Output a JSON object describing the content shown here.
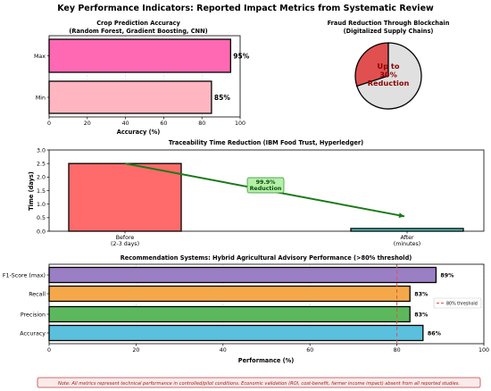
{
  "page_title": "Key Performance Indicators: Reported Impact Metrics from Systematic Review",
  "note": "Note: All metrics represent technical performance in controlled/pilot conditions. Economic validation (ROI, cost-benefit, farmer income impact) absent from all reported studies.",
  "colors": {
    "pink_max": "#ff69b4",
    "pink_min": "#ffb6c1",
    "pie_red": "#e05050",
    "pie_grey": "#e0e0e0",
    "before_red": "#ff6b6b",
    "after_teal": "#4ecdc4",
    "arrow_green": "#1a7a1a",
    "purple": "#9b7fc4",
    "orange": "#f4a84a",
    "green": "#5cb85c",
    "blue": "#5bc0de",
    "threshold_red": "#d9534f"
  },
  "chart_data": [
    {
      "type": "bar",
      "orientation": "horizontal",
      "title": "Crop Prediction Accuracy",
      "subtitle": "(Random Forest, Gradient Boosting, CNN)",
      "categories": [
        "Max",
        "Min"
      ],
      "values": [
        95,
        85
      ],
      "value_labels": [
        "95%",
        "85%"
      ],
      "xlabel": "Accuracy (%)",
      "xlim": [
        0,
        100
      ],
      "xticks": [
        "0",
        "20",
        "40",
        "60",
        "80",
        "100"
      ],
      "grid": true
    },
    {
      "type": "pie",
      "title": "Fraud Reduction Through Blockchain",
      "subtitle": "(Digitalized Supply Chains)",
      "values": [
        30,
        70
      ],
      "center_label": "Up to\n30%\nReduction"
    },
    {
      "type": "bar",
      "title": "Traceability Time Reduction (IBM Food Trust, Hyperledger)",
      "categories": [
        "Before\n(2-3 days)",
        "After\n(minutes)"
      ],
      "values": [
        2.5,
        0.1
      ],
      "ylabel": "Time (days)",
      "ylim": [
        0,
        3.0
      ],
      "yticks": [
        "0.0",
        "0.5",
        "1.0",
        "1.5",
        "2.0",
        "2.5",
        "3.0"
      ],
      "annotation": "99.9%\nReduction"
    },
    {
      "type": "bar",
      "orientation": "horizontal",
      "title": "Recommendation Systems: Hybrid Agricultural Advisory Performance (>80% threshold)",
      "categories": [
        "F1-Score (max)",
        "Recall",
        "Precision",
        "Accuracy"
      ],
      "values": [
        89,
        83,
        83,
        86
      ],
      "value_labels": [
        "89%",
        "83%",
        "83%",
        "86%"
      ],
      "xlabel": "Performance (%)",
      "xlim": [
        0,
        100
      ],
      "xticks": [
        "0",
        "20",
        "40",
        "60",
        "80",
        "100"
      ],
      "threshold": 80,
      "legend": "80% threshold",
      "legend_position": "right",
      "grid": true
    }
  ]
}
